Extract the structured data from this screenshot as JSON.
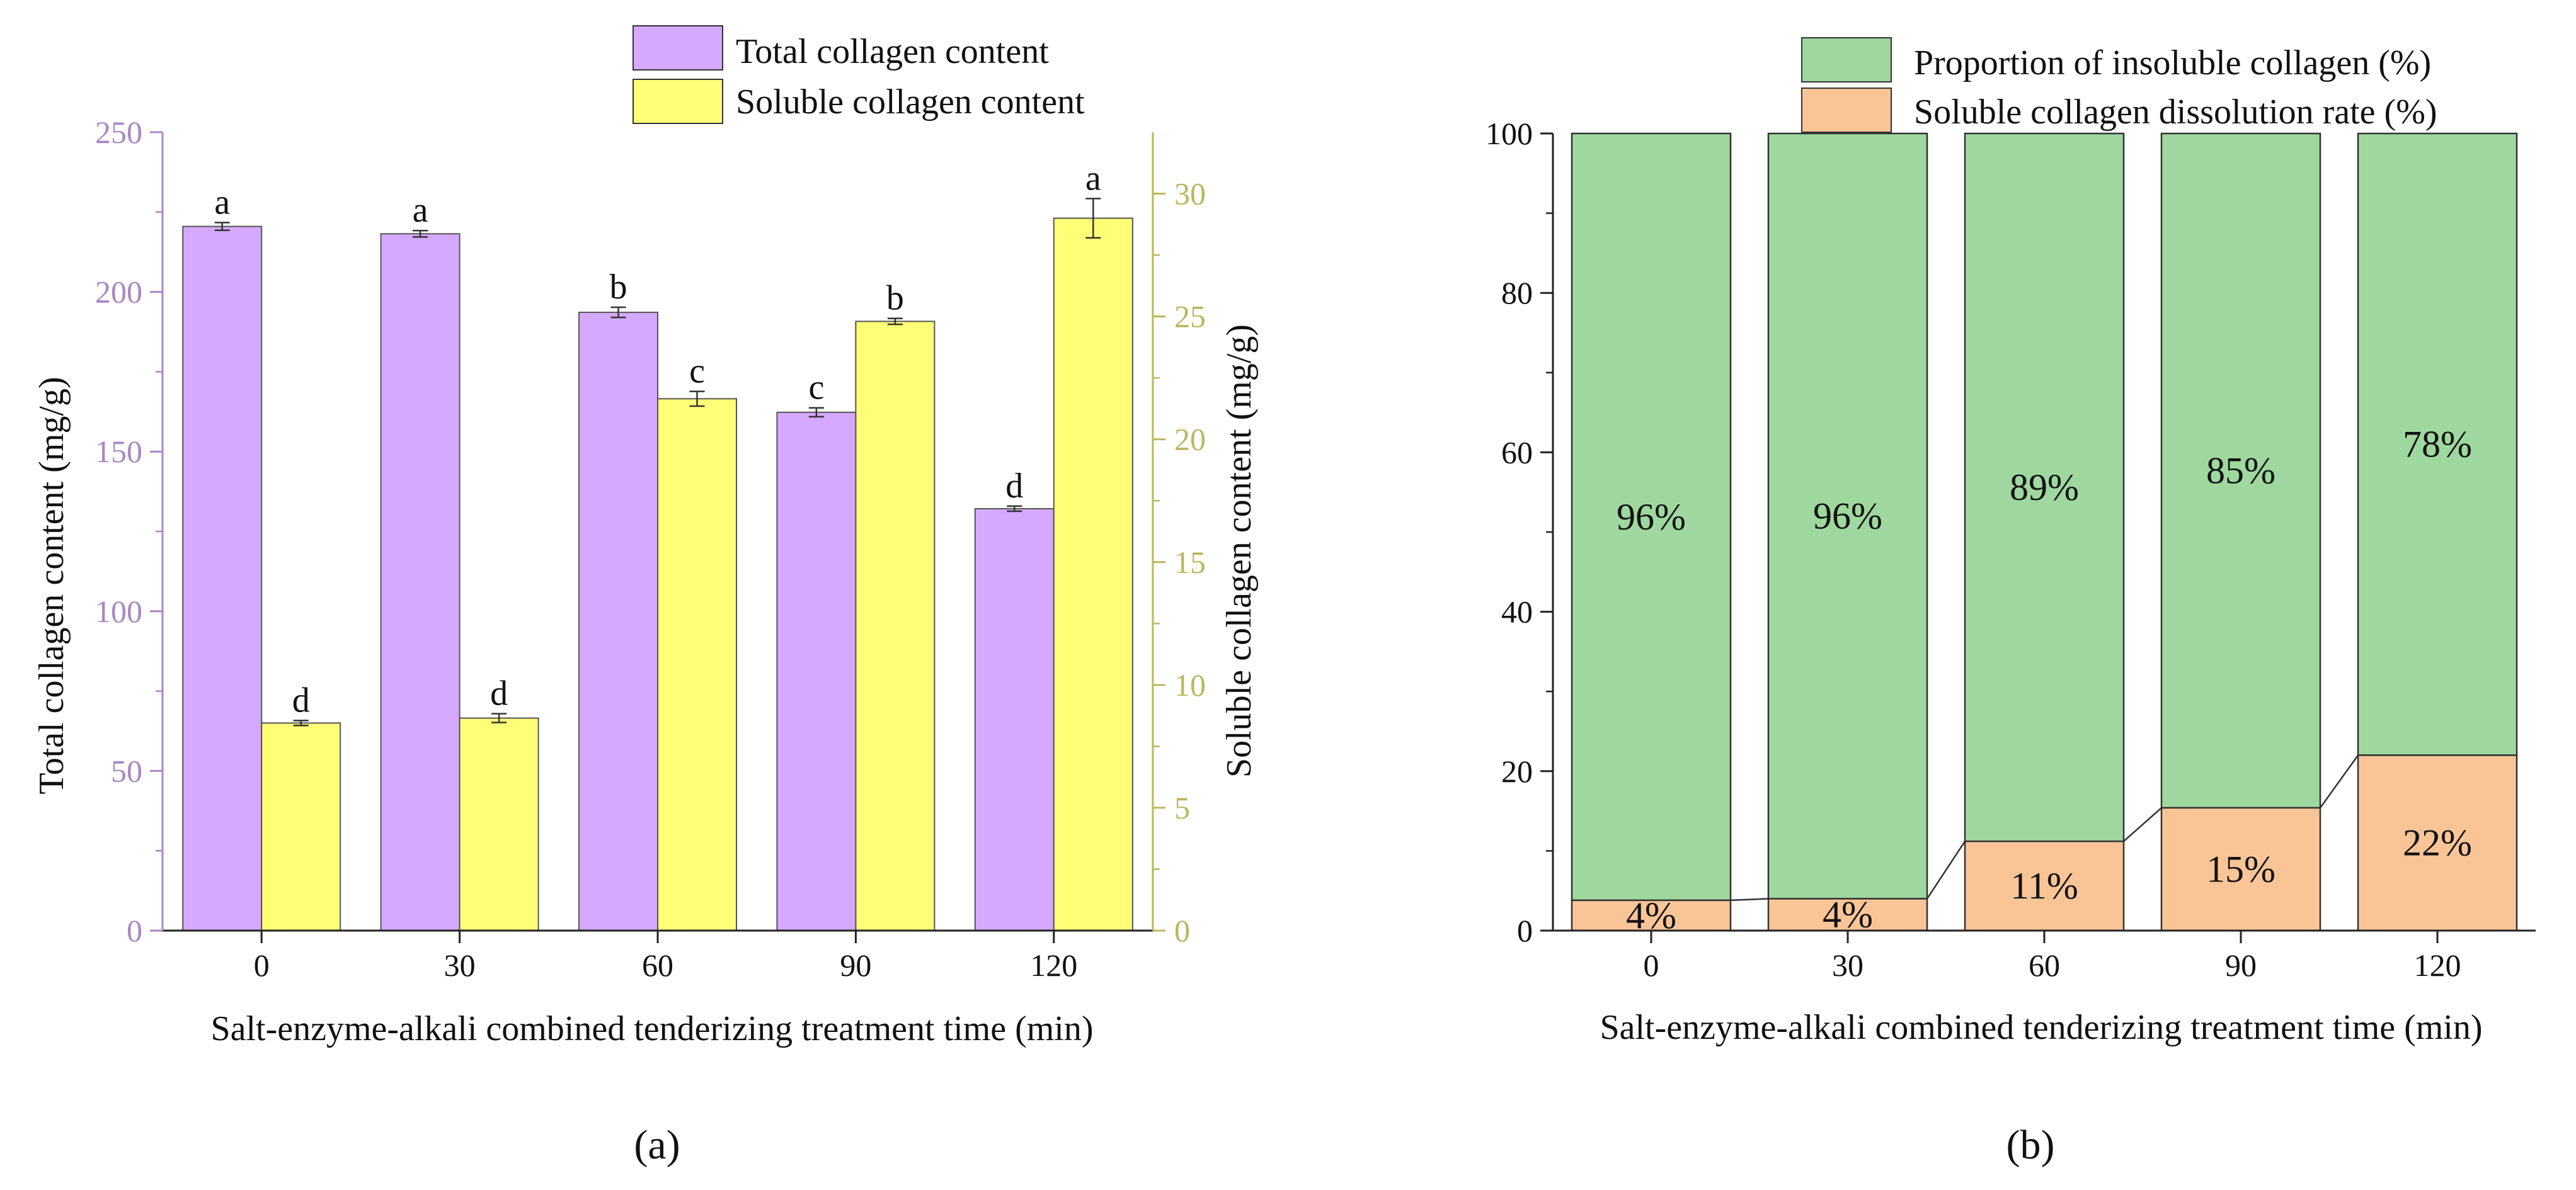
{
  "colors": {
    "total_bar": "#d4a9ff",
    "soluble_bar": "#ffff77",
    "insoluble_bar": "#9ed89e",
    "dissolution_bar": "#f9c597",
    "left_axis": "#a987c4",
    "right_axis": "#b9b85e",
    "axis": "#222222"
  },
  "chart_data": [
    {
      "panel": "(a)",
      "type": "bar",
      "xlabel": "Salt-enzyme-alkali combined tenderizing treatment time (min)",
      "categories": [
        "0",
        "30",
        "60",
        "90",
        "120"
      ],
      "ylabel_left": "Total collagen content (mg/g)",
      "ylabel_right": "Soluble collagen content (mg/g)",
      "ylim_left": [
        0,
        250
      ],
      "yticks_left": [
        "0",
        "50",
        "100",
        "150",
        "200",
        "250"
      ],
      "ylim_right": [
        0,
        32.5
      ],
      "yticks_right": [
        "0",
        "5",
        "10",
        "15",
        "20",
        "25",
        "30"
      ],
      "legend_position": "top-right",
      "series": [
        {
          "name": "Total collagen content",
          "axis": "left",
          "values": [
            220.5,
            218.2,
            193.6,
            162.3,
            132.1
          ],
          "errors": [
            1.2,
            1.0,
            1.6,
            1.4,
            0.8
          ],
          "labels": [
            "a",
            "a",
            "b",
            "c",
            "d"
          ]
        },
        {
          "name": "Soluble collagen content",
          "axis": "right",
          "values": [
            8.45,
            8.65,
            21.65,
            24.8,
            29.0
          ],
          "errors": [
            0.1,
            0.18,
            0.3,
            0.12,
            0.8
          ],
          "labels": [
            "d",
            "d",
            "c",
            "b",
            "a"
          ]
        }
      ]
    },
    {
      "panel": "(b)",
      "type": "stacked-bar",
      "xlabel": "Salt-enzyme-alkali combined tenderizing treatment time (min)",
      "categories": [
        "0",
        "30",
        "60",
        "90",
        "120"
      ],
      "ylim": [
        0,
        100
      ],
      "yticks": [
        "0",
        "20",
        "40",
        "60",
        "80",
        "100"
      ],
      "legend_position": "top-right",
      "series": [
        {
          "name": "Soluble collagen dissolution rate (%)",
          "values": [
            3.8,
            4.0,
            11.2,
            15.4,
            22.0
          ],
          "labels": [
            "4%",
            "4%",
            "11%",
            "15%",
            "22%"
          ]
        },
        {
          "name": "Proportion of insoluble collagen (%)",
          "values": [
            96.2,
            96.0,
            88.8,
            84.6,
            78.0
          ],
          "labels": [
            "96%",
            "96%",
            "89%",
            "85%",
            "78%"
          ]
        }
      ]
    }
  ]
}
